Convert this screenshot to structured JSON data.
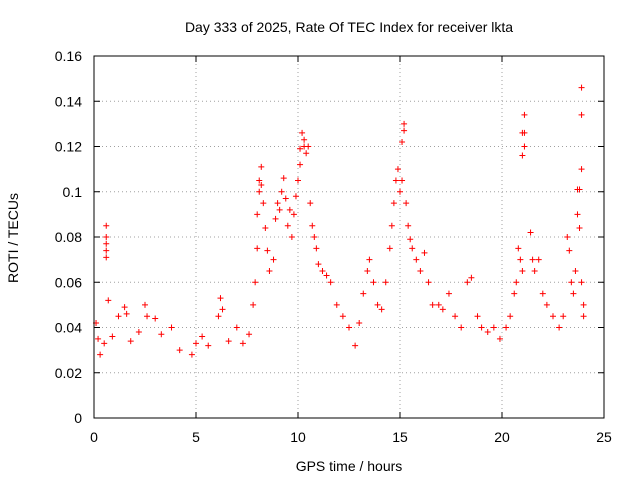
{
  "chart_data": {
    "type": "scatter",
    "title": "Day 333 of 2025, Rate Of TEC Index for receiver lkta",
    "xlabel": "GPS time / hours",
    "ylabel": "ROTI / TECUs",
    "xlim": [
      0,
      25
    ],
    "ylim": [
      0,
      0.16
    ],
    "x_ticks": [
      0,
      5,
      10,
      15,
      20,
      25
    ],
    "y_ticks": [
      0,
      0.02,
      0.04,
      0.06,
      0.08,
      0.1,
      0.12,
      0.14,
      0.16
    ],
    "x_tick_labels": [
      "0",
      "5",
      "10",
      "15",
      "20",
      "25"
    ],
    "y_tick_labels": [
      "0",
      "0.02",
      "0.04",
      "0.06",
      "0.08",
      "0.1",
      "0.12",
      "0.14",
      "0.16"
    ],
    "grid": true,
    "marker": "+",
    "color": "#ff0000",
    "series": [
      {
        "name": "ROTI",
        "points": [
          [
            0.1,
            0.042
          ],
          [
            0.2,
            0.035
          ],
          [
            0.3,
            0.028
          ],
          [
            0.5,
            0.033
          ],
          [
            0.6,
            0.085
          ],
          [
            0.6,
            0.08
          ],
          [
            0.6,
            0.077
          ],
          [
            0.6,
            0.074
          ],
          [
            0.6,
            0.071
          ],
          [
            0.7,
            0.052
          ],
          [
            0.9,
            0.036
          ],
          [
            1.2,
            0.045
          ],
          [
            1.5,
            0.049
          ],
          [
            1.6,
            0.046
          ],
          [
            1.8,
            0.034
          ],
          [
            2.2,
            0.038
          ],
          [
            2.5,
            0.05
          ],
          [
            2.6,
            0.045
          ],
          [
            3.0,
            0.044
          ],
          [
            3.3,
            0.037
          ],
          [
            3.8,
            0.04
          ],
          [
            4.2,
            0.03
          ],
          [
            4.8,
            0.028
          ],
          [
            5.0,
            0.033
          ],
          [
            5.3,
            0.036
          ],
          [
            5.6,
            0.032
          ],
          [
            6.1,
            0.045
          ],
          [
            6.2,
            0.053
          ],
          [
            6.3,
            0.048
          ],
          [
            6.6,
            0.034
          ],
          [
            7.0,
            0.04
          ],
          [
            7.3,
            0.033
          ],
          [
            7.6,
            0.037
          ],
          [
            7.8,
            0.05
          ],
          [
            7.9,
            0.06
          ],
          [
            8.0,
            0.075
          ],
          [
            8.0,
            0.09
          ],
          [
            8.1,
            0.1
          ],
          [
            8.1,
            0.105
          ],
          [
            8.2,
            0.111
          ],
          [
            8.2,
            0.103
          ],
          [
            8.3,
            0.095
          ],
          [
            8.4,
            0.084
          ],
          [
            8.5,
            0.074
          ],
          [
            8.6,
            0.065
          ],
          [
            8.8,
            0.07
          ],
          [
            8.9,
            0.088
          ],
          [
            9.0,
            0.095
          ],
          [
            9.1,
            0.092
          ],
          [
            9.2,
            0.1
          ],
          [
            9.3,
            0.106
          ],
          [
            9.4,
            0.097
          ],
          [
            9.5,
            0.085
          ],
          [
            9.6,
            0.092
          ],
          [
            9.7,
            0.08
          ],
          [
            9.8,
            0.09
          ],
          [
            9.9,
            0.098
          ],
          [
            10.0,
            0.105
          ],
          [
            10.1,
            0.112
          ],
          [
            10.1,
            0.119
          ],
          [
            10.2,
            0.126
          ],
          [
            10.3,
            0.123
          ],
          [
            10.3,
            0.12
          ],
          [
            10.4,
            0.117
          ],
          [
            10.5,
            0.12
          ],
          [
            10.6,
            0.095
          ],
          [
            10.7,
            0.085
          ],
          [
            10.8,
            0.08
          ],
          [
            10.9,
            0.075
          ],
          [
            11.0,
            0.068
          ],
          [
            11.2,
            0.065
          ],
          [
            11.4,
            0.063
          ],
          [
            11.6,
            0.06
          ],
          [
            11.9,
            0.05
          ],
          [
            12.2,
            0.045
          ],
          [
            12.5,
            0.04
          ],
          [
            12.8,
            0.032
          ],
          [
            13.0,
            0.042
          ],
          [
            13.2,
            0.055
          ],
          [
            13.4,
            0.065
          ],
          [
            13.5,
            0.07
          ],
          [
            13.7,
            0.06
          ],
          [
            13.9,
            0.05
          ],
          [
            14.1,
            0.048
          ],
          [
            14.3,
            0.06
          ],
          [
            14.5,
            0.075
          ],
          [
            14.6,
            0.085
          ],
          [
            14.7,
            0.095
          ],
          [
            14.8,
            0.105
          ],
          [
            14.9,
            0.11
          ],
          [
            15.0,
            0.1
          ],
          [
            15.1,
            0.105
          ],
          [
            15.1,
            0.122
          ],
          [
            15.2,
            0.127
          ],
          [
            15.2,
            0.13
          ],
          [
            15.3,
            0.095
          ],
          [
            15.4,
            0.085
          ],
          [
            15.5,
            0.079
          ],
          [
            15.6,
            0.075
          ],
          [
            15.8,
            0.07
          ],
          [
            16.0,
            0.065
          ],
          [
            16.2,
            0.073
          ],
          [
            16.4,
            0.06
          ],
          [
            16.6,
            0.05
          ],
          [
            16.9,
            0.05
          ],
          [
            17.1,
            0.048
          ],
          [
            17.4,
            0.055
          ],
          [
            17.7,
            0.045
          ],
          [
            18.0,
            0.04
          ],
          [
            18.3,
            0.06
          ],
          [
            18.5,
            0.062
          ],
          [
            18.8,
            0.045
          ],
          [
            19.0,
            0.04
          ],
          [
            19.3,
            0.038
          ],
          [
            19.6,
            0.04
          ],
          [
            19.9,
            0.035
          ],
          [
            20.2,
            0.04
          ],
          [
            20.4,
            0.045
          ],
          [
            20.6,
            0.055
          ],
          [
            20.7,
            0.06
          ],
          [
            20.8,
            0.075
          ],
          [
            20.9,
            0.07
          ],
          [
            21.0,
            0.065
          ],
          [
            21.0,
            0.116
          ],
          [
            21.1,
            0.12
          ],
          [
            21.1,
            0.126
          ],
          [
            21.0,
            0.126
          ],
          [
            21.1,
            0.134
          ],
          [
            21.4,
            0.082
          ],
          [
            21.5,
            0.07
          ],
          [
            21.6,
            0.065
          ],
          [
            21.8,
            0.07
          ],
          [
            22.0,
            0.055
          ],
          [
            22.2,
            0.05
          ],
          [
            22.5,
            0.045
          ],
          [
            22.8,
            0.04
          ],
          [
            23.0,
            0.045
          ],
          [
            23.2,
            0.08
          ],
          [
            23.3,
            0.074
          ],
          [
            23.4,
            0.06
          ],
          [
            23.5,
            0.055
          ],
          [
            23.6,
            0.065
          ],
          [
            23.7,
            0.09
          ],
          [
            23.7,
            0.101
          ],
          [
            23.8,
            0.101
          ],
          [
            23.8,
            0.084
          ],
          [
            23.9,
            0.11
          ],
          [
            23.9,
            0.134
          ],
          [
            23.9,
            0.146
          ],
          [
            23.9,
            0.06
          ],
          [
            24.0,
            0.05
          ],
          [
            24.0,
            0.045
          ]
        ]
      }
    ]
  }
}
